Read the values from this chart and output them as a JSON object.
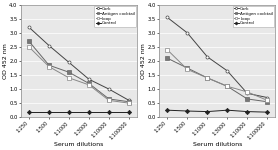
{
  "x_labels": [
    "1:250",
    "1:500",
    "1:1000",
    "1:3000",
    "1:10000",
    "1:100000"
  ],
  "x_positions": [
    0,
    1,
    2,
    3,
    4,
    5
  ],
  "left": {
    "cork": [
      3.2,
      2.55,
      1.95,
      1.35,
      1.0,
      0.6
    ],
    "antigen": [
      2.7,
      1.85,
      1.6,
      1.2,
      0.65,
      0.55
    ],
    "loop": [
      2.5,
      1.8,
      1.4,
      1.15,
      0.6,
      0.5
    ],
    "control": [
      0.2,
      0.2,
      0.2,
      0.2,
      0.2,
      0.2
    ]
  },
  "right": {
    "cork": [
      3.55,
      3.0,
      2.15,
      1.65,
      0.85,
      0.7
    ],
    "antigen": [
      2.1,
      1.75,
      1.4,
      1.1,
      0.65,
      0.55
    ],
    "loop": [
      2.4,
      1.7,
      1.4,
      1.1,
      0.9,
      0.6
    ],
    "control": [
      0.25,
      0.22,
      0.2,
      0.25,
      0.2,
      0.18
    ]
  },
  "ylim": [
    0,
    4
  ],
  "yticks": [
    0,
    0.5,
    1.0,
    1.5,
    2.0,
    2.5,
    3.0,
    3.5,
    4.0
  ],
  "ylabel": "OD 452 nm",
  "xlabel": "Serum dilutions",
  "legend_labels": [
    "Cork",
    "Antigen cocktail",
    "Loop",
    "Control"
  ],
  "markers": [
    "o",
    "s",
    "s",
    "D"
  ],
  "line_colors": [
    "#444444",
    "#666666",
    "#888888",
    "#222222"
  ],
  "markerfacecolors": [
    "white",
    "#777777",
    "white",
    "#222222"
  ],
  "background": "#e8e8e8"
}
